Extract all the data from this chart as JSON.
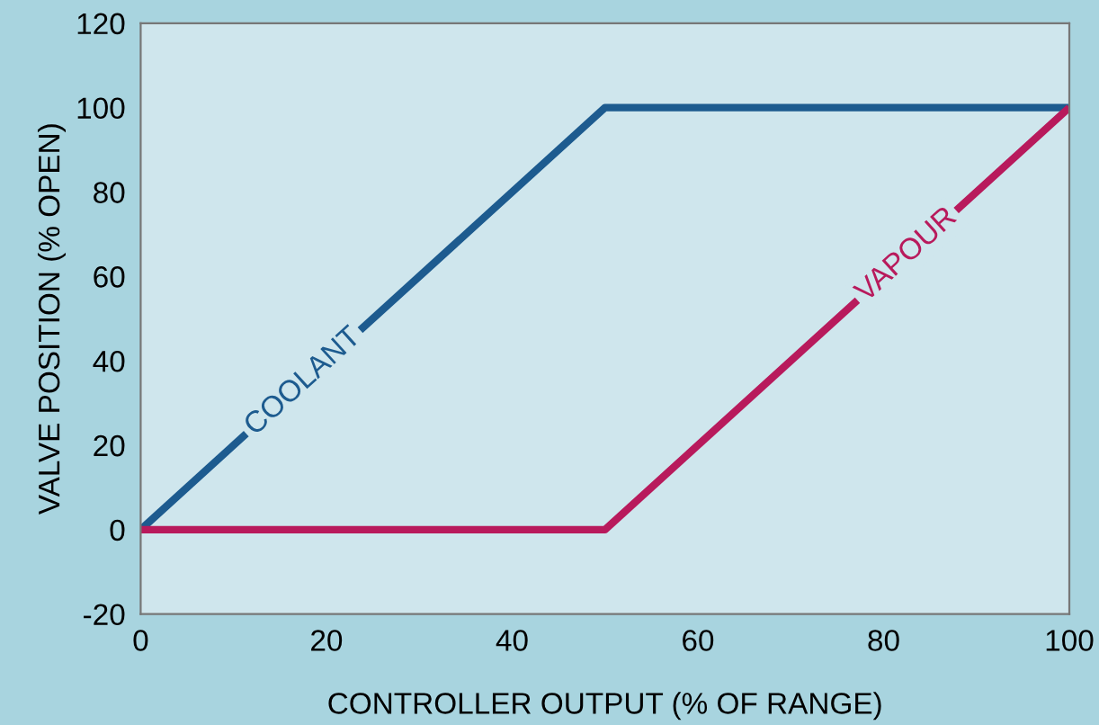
{
  "chart_data": {
    "type": "line",
    "xlabel": "CONTROLLER OUTPUT (% OF RANGE)",
    "ylabel": "VALVE POSITION (% OPEN)",
    "x": [
      0,
      50,
      100
    ],
    "series": [
      {
        "name": "COOLANT",
        "color": "#1d5b8f",
        "values": [
          0,
          100,
          100
        ]
      },
      {
        "name": "VAPOUR",
        "color": "#b81a5c",
        "values": [
          0,
          0,
          100
        ]
      }
    ],
    "xlim": [
      0,
      100
    ],
    "ylim": [
      -20,
      120
    ],
    "xticks": [
      0,
      20,
      40,
      60,
      80,
      100
    ],
    "yticks": [
      -20,
      0,
      20,
      40,
      60,
      80,
      100,
      120
    ],
    "grid": false,
    "legend": false,
    "marker": "none",
    "line_style": "solid"
  }
}
